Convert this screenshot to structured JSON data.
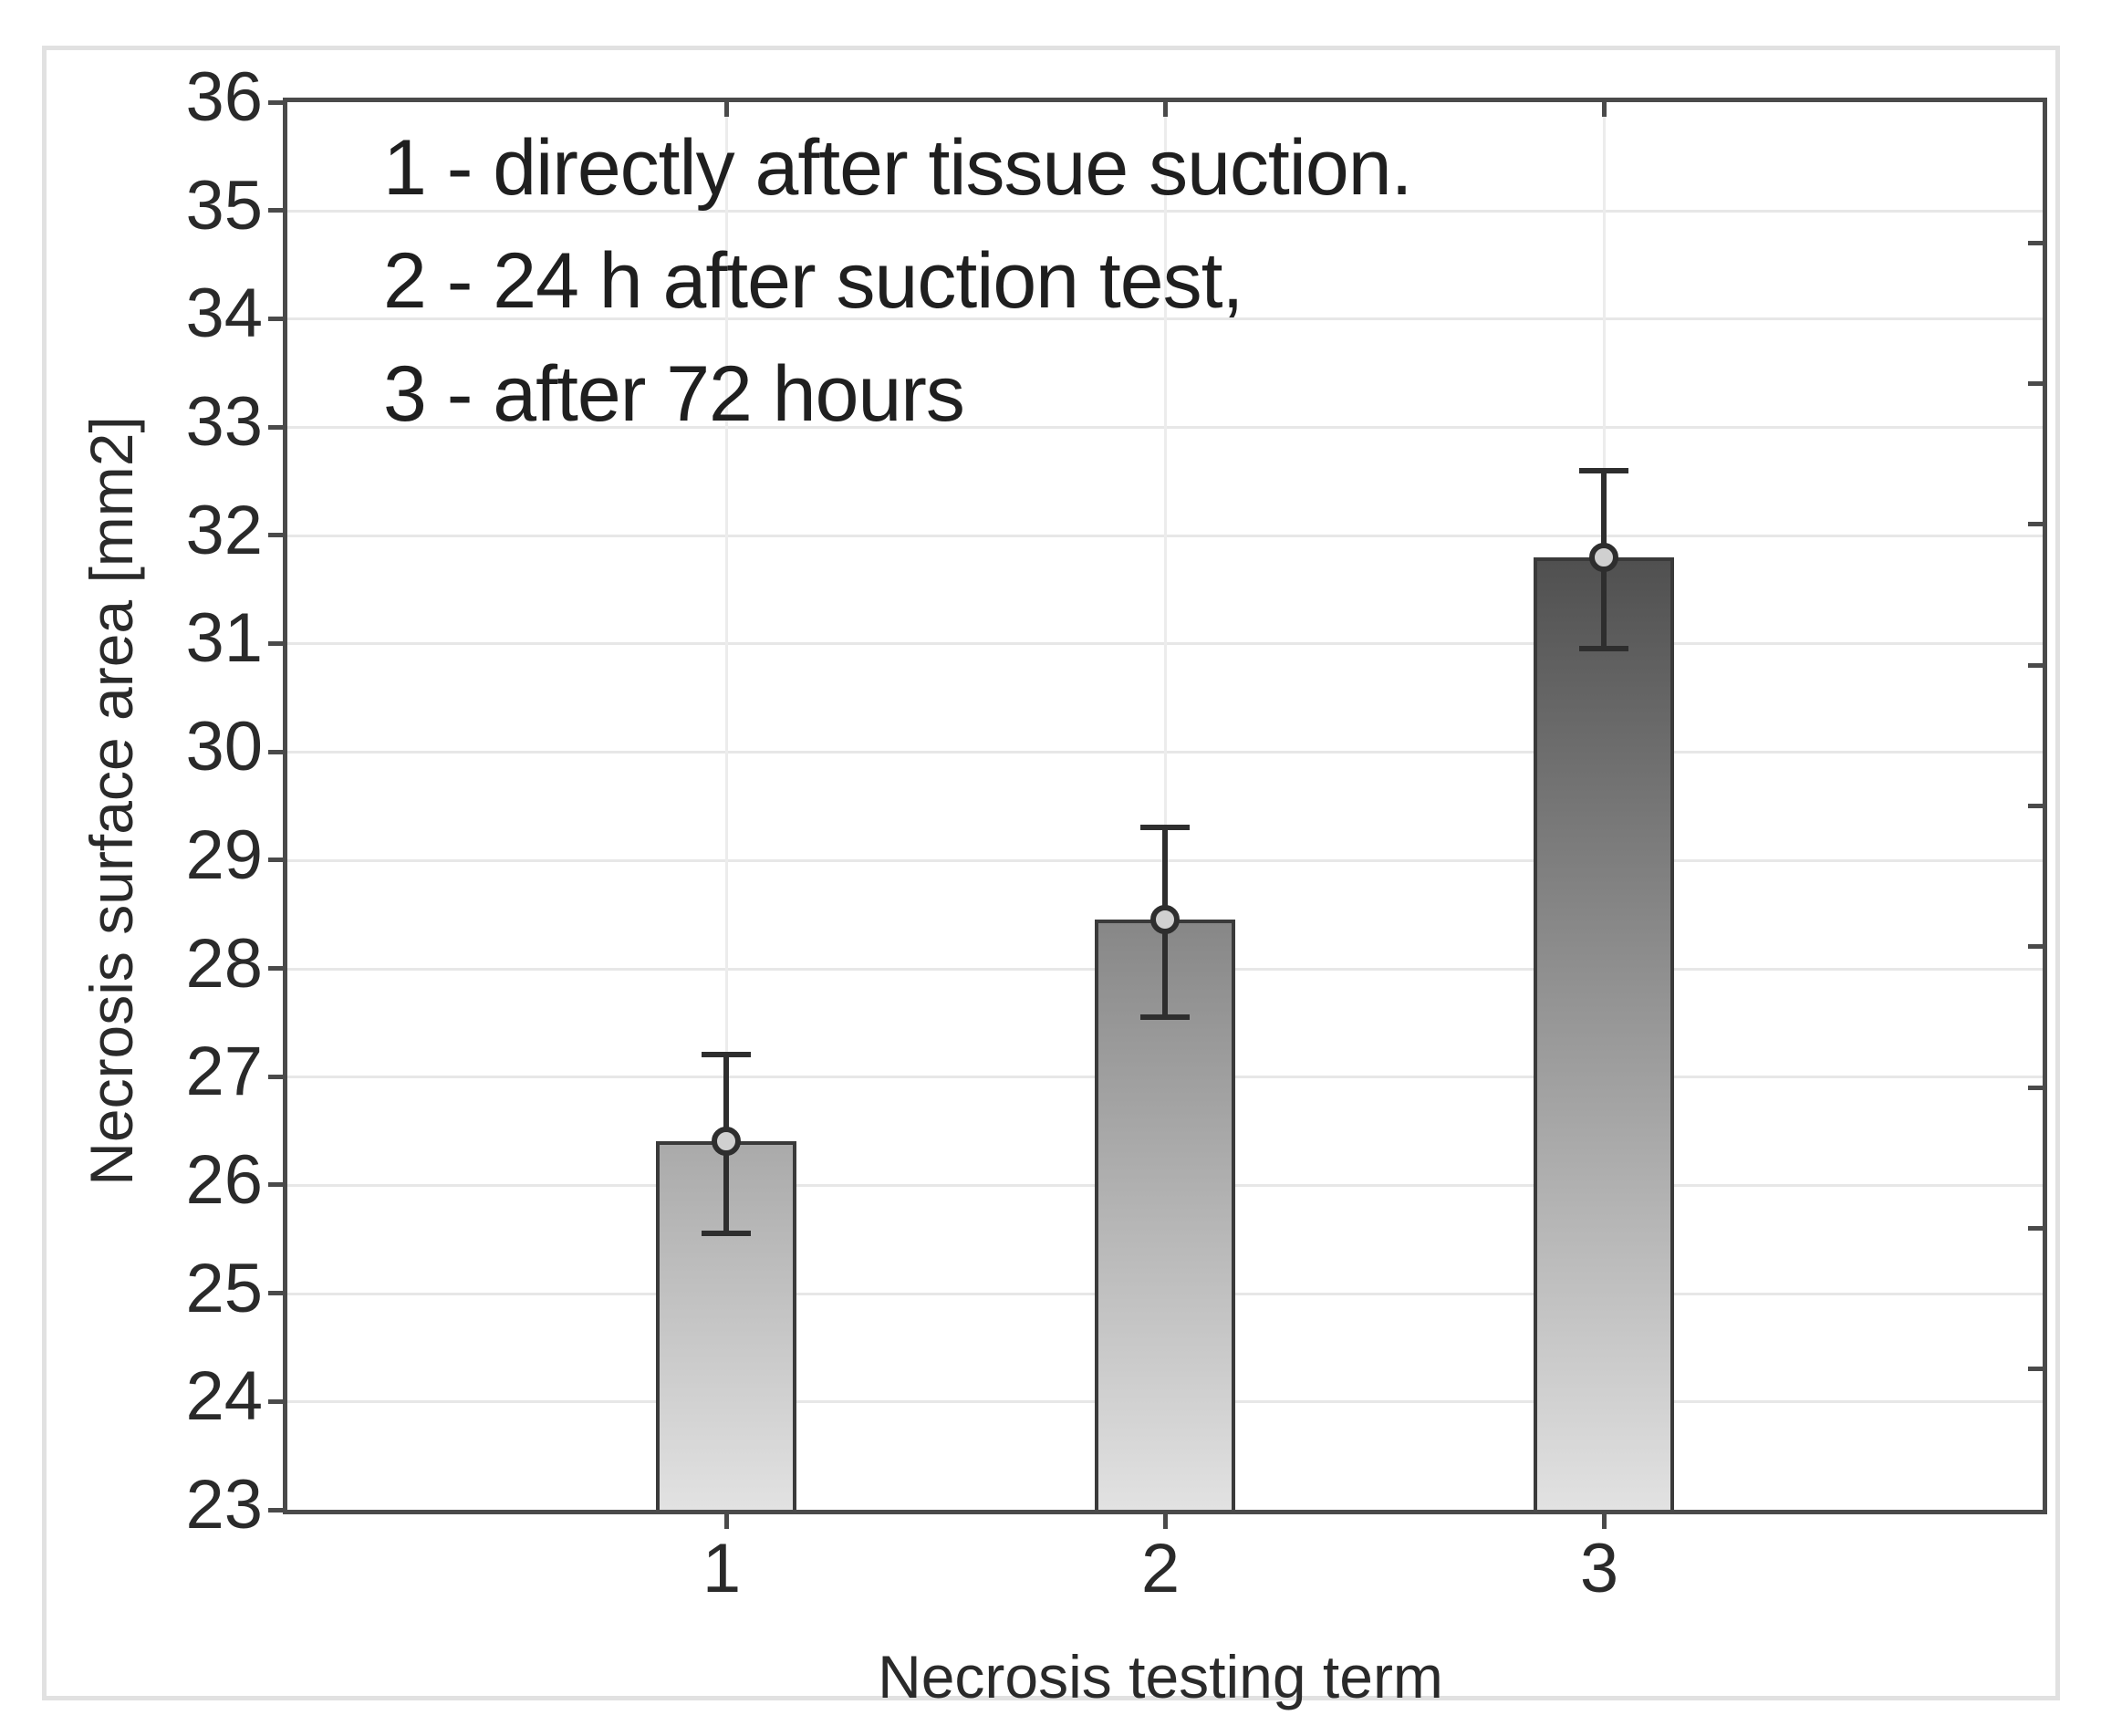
{
  "chart_data": {
    "type": "bar",
    "title": "",
    "xlabel": "Necrosis testing term",
    "ylabel": "Necrosis surface area [mm2]",
    "categories": [
      "1",
      "2",
      "3"
    ],
    "values": [
      26.4,
      28.45,
      31.8
    ],
    "error_low": [
      25.55,
      27.55,
      30.95
    ],
    "error_high": [
      27.2,
      29.3,
      32.6
    ],
    "ylim": [
      23,
      36
    ],
    "yticks": [
      23,
      24,
      25,
      26,
      27,
      28,
      29,
      30,
      31,
      32,
      33,
      34,
      35,
      36
    ],
    "grid": true,
    "legend_position": "none",
    "right_tick_divisions": 10,
    "annotations": [
      "1 - directly after tissue suction.",
      "2 - 24 h after suction test,",
      "3 - after 72 hours"
    ]
  },
  "colors": {
    "frame": "#4a4a4a",
    "outer_border": "#e1e1e1",
    "grid_h": "#e7e7e7",
    "grid_v": "#ececec",
    "bar_border": "#3a3a3a",
    "bar_top_dark": "#0a0a0a",
    "bar_bottom_light": "#e2e2e2",
    "error_bar": "#2e2e2e",
    "marker_fill": "#d0d0d0",
    "text": "#262626"
  }
}
